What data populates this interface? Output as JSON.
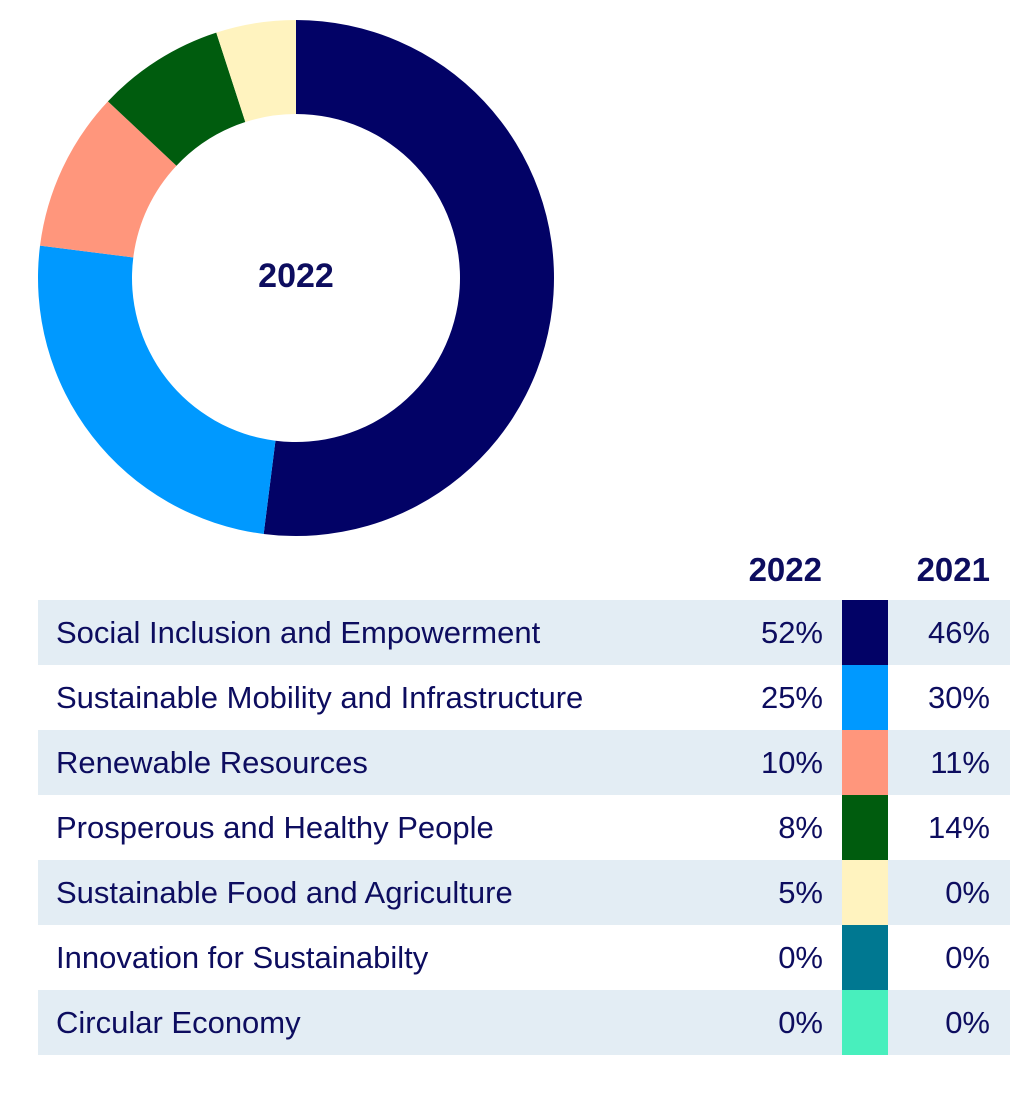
{
  "chart_data": {
    "type": "pie",
    "subtype": "donut",
    "center_label": "2022",
    "columns": [
      "2022",
      "2021"
    ],
    "categories": [
      "Social Inclusion and Empowerment",
      "Sustainable Mobility and Infrastructure",
      "Renewable Resources",
      "Prosperous and Healthy People",
      "Sustainable Food and Agriculture",
      "Innovation for Sustainabilty",
      "Circular Economy"
    ],
    "colors": [
      "#020266",
      "#0099ff",
      "#ff967c",
      "#005c0e",
      "#fff3bf",
      "#007891",
      "#48efbd"
    ],
    "series": [
      {
        "name": "2022",
        "values": [
          52,
          25,
          10,
          8,
          5,
          0,
          0
        ]
      },
      {
        "name": "2021",
        "values": [
          46,
          30,
          11,
          14,
          0,
          0,
          0
        ]
      }
    ],
    "value_labels_2022": [
      "52%",
      "25%",
      "10%",
      "8%",
      "5%",
      "0%",
      "0%"
    ],
    "value_labels_2021": [
      "46%",
      "30%",
      "11%",
      "14%",
      "0%",
      "0%",
      "0%"
    ]
  }
}
